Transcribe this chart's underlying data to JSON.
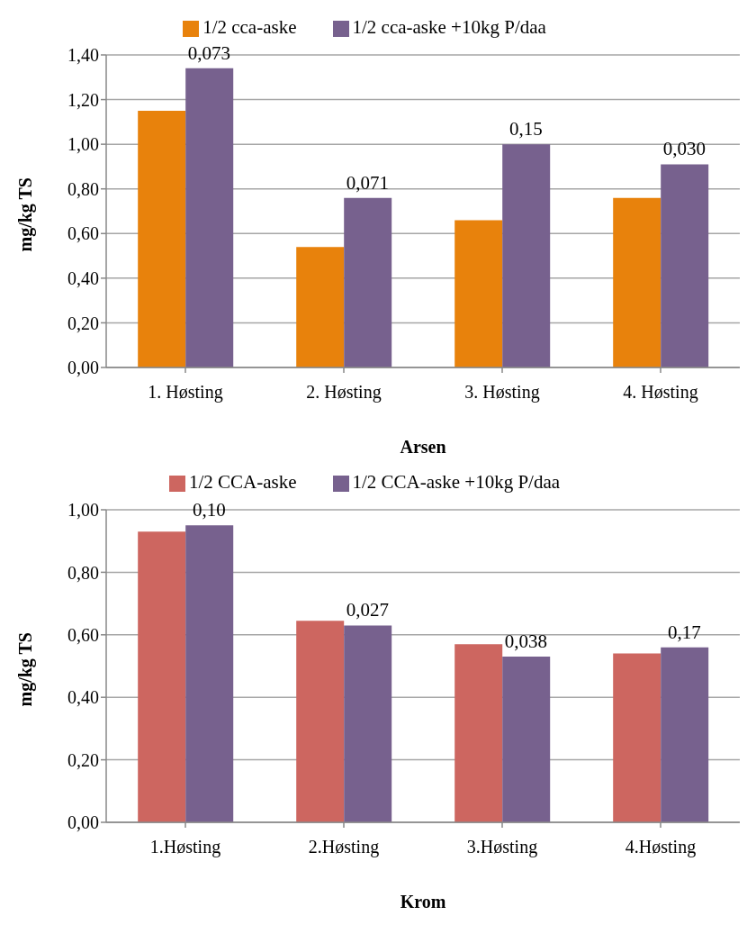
{
  "chart_data": [
    {
      "type": "bar",
      "xlabel": "Arsen",
      "ylabel": "mg/kg TS",
      "categories": [
        "1. Høsting",
        "2. Høsting",
        "3. Høsting",
        "4. Høsting"
      ],
      "series": [
        {
          "name": "1/2 cca-aske",
          "color": "#e8820c",
          "values": [
            1.15,
            0.54,
            0.66,
            0.76
          ]
        },
        {
          "name": "1/2 cca-aske +10kg P/daa",
          "color": "#77618e",
          "values": [
            1.34,
            0.76,
            1.0,
            0.91
          ]
        }
      ],
      "ylim": [
        0,
        1.4
      ],
      "yticks": [
        {
          "value": 0,
          "label": "0,00"
        },
        {
          "value": 0.2,
          "label": "0,20"
        },
        {
          "value": 0.4,
          "label": "0,40"
        },
        {
          "value": 0.6,
          "label": "0,60"
        },
        {
          "value": 0.8,
          "label": "0,80"
        },
        {
          "value": 1.0,
          "label": "1,00"
        },
        {
          "value": 1.2,
          "label": "1,20"
        },
        {
          "value": 1.4,
          "label": "1,40"
        }
      ],
      "grid": "y",
      "legend": "top",
      "annotations": [
        {
          "text": "0,073",
          "x": "1. Høsting",
          "y": 1.34
        },
        {
          "text": "0,071",
          "x": "2. Høsting",
          "y": 0.76
        },
        {
          "text": "0,15",
          "x": "3. Høsting",
          "y": 1.0
        },
        {
          "text": "0,030",
          "x": "4. Høsting",
          "y": 0.91
        }
      ]
    },
    {
      "type": "bar",
      "xlabel": "Krom",
      "ylabel": "mg/kg TS",
      "categories": [
        "1.Høsting",
        "2.Høsting",
        "3.Høsting",
        "4.Høsting"
      ],
      "series": [
        {
          "name": "1/2 CCA-aske",
          "color": "#cd6660",
          "values": [
            0.93,
            0.645,
            0.57,
            0.54
          ]
        },
        {
          "name": "1/2 CCA-aske +10kg P/daa",
          "color": "#77618e",
          "values": [
            0.95,
            0.63,
            0.53,
            0.56
          ]
        }
      ],
      "ylim": [
        0,
        1.0
      ],
      "yticks": [
        {
          "value": 0,
          "label": "0,00"
        },
        {
          "value": 0.2,
          "label": "0,20"
        },
        {
          "value": 0.4,
          "label": "0,40"
        },
        {
          "value": 0.6,
          "label": "0,60"
        },
        {
          "value": 0.8,
          "label": "0,80"
        },
        {
          "value": 1.0,
          "label": "1,00"
        }
      ],
      "grid": "y",
      "legend": "top",
      "annotations": [
        {
          "text": "0,10",
          "x": "1.Høsting",
          "y": 0.95
        },
        {
          "text": "0,027",
          "x": "2.Høsting",
          "y": 0.63
        },
        {
          "text": "0,038",
          "x": "3.Høsting",
          "y": 0.53
        },
        {
          "text": "0,17",
          "x": "4.Høsting",
          "y": 0.56
        }
      ]
    }
  ]
}
